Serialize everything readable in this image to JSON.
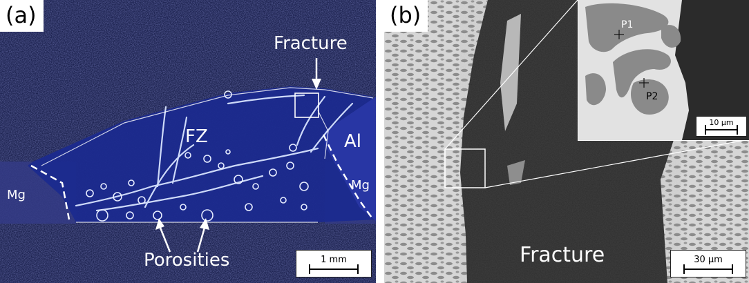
{
  "panel_a": {
    "label": "(a)",
    "fz": "FZ",
    "al": "Al",
    "mg_left": "Mg",
    "mg_right": "Mg",
    "fracture": "Fracture",
    "porosities": "Porosities",
    "scale": "1 mm"
  },
  "panel_b": {
    "label": "(b)",
    "fracture": "Fracture",
    "scale": "30 µm",
    "inset": {
      "p1": "P1",
      "p2": "P2",
      "scale": "10 µm"
    }
  }
}
